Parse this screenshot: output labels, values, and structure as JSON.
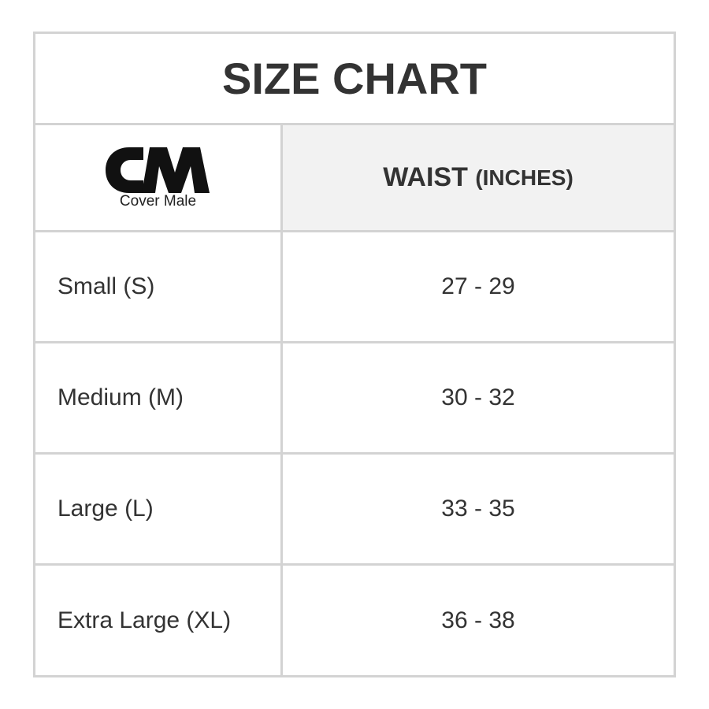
{
  "title": "SIZE CHART",
  "logo": {
    "monogram": "CM",
    "brand": "Cover Male"
  },
  "header": {
    "column": "WAIST",
    "unit": "(INCHES)"
  },
  "rows": [
    {
      "size": "Small (S)",
      "waist": "27 - 29"
    },
    {
      "size": "Medium (M)",
      "waist": "30 - 32"
    },
    {
      "size": "Large (L)",
      "waist": "33 - 35"
    },
    {
      "size": "Extra Large (XL)",
      "waist": "36 - 38"
    }
  ]
}
